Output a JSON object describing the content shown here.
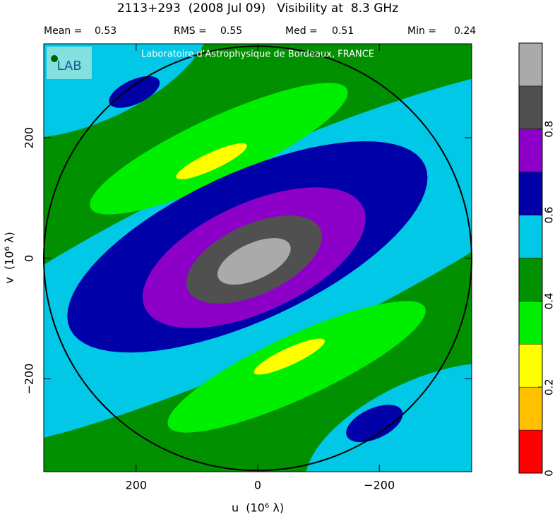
{
  "chart_data": {
    "type": "visibility-map",
    "title": "2113+293  (2008 Jul 09)   Visibility at  8.3 GHz",
    "stats": [
      {
        "label": "Mean =",
        "value": 0.53
      },
      {
        "label": "RMS =",
        "value": 0.55
      },
      {
        "label": "Med =",
        "value": 0.51
      },
      {
        "label": "Min =",
        "value": 0.24
      }
    ],
    "watermark": "Laboratoire d'Astrophysique de Bordeaux, FRANCE",
    "logo": "LAB",
    "x_label": "u  (10⁶ λ)",
    "y_label": "v  (10⁶ λ)",
    "xlim": [
      352,
      -352
    ],
    "ylim": [
      -354,
      356
    ],
    "xticks": [
      200,
      0,
      {
        "value": -200,
        "label": "−200"
      }
    ],
    "yticks": [
      {
        "value": -200,
        "label": "−200"
      },
      0,
      200
    ],
    "circle_radius": 352,
    "background_value": 0.4,
    "regions": [
      {
        "value": 0.5,
        "center": [
          273,
          323
        ],
        "radii": [
          210,
          95
        ],
        "angle": 155
      },
      {
        "value": 0.5,
        "center": [
          -273,
          -297
        ],
        "radii": [
          210,
          95
        ],
        "angle": 155
      },
      {
        "value": 0.5,
        "center": [
          0,
          0
        ],
        "radii": [
          700,
          157
        ],
        "angle": 155
      },
      {
        "value": 0.3,
        "center": [
          64,
          182
        ],
        "radii": [
          233,
          52
        ],
        "angle": 155
      },
      {
        "value": 0.3,
        "center": [
          -64,
          -180
        ],
        "radii": [
          233,
          52
        ],
        "angle": 155
      },
      {
        "value": 0.2,
        "center": [
          76,
          161
        ],
        "radii": [
          64,
          14
        ],
        "angle": 155
      },
      {
        "value": 0.2,
        "center": [
          -52,
          -163
        ],
        "radii": [
          64,
          14
        ],
        "angle": 155
      },
      {
        "value": 0.6,
        "center": [
          17,
          19
        ],
        "radii": [
          322,
          122
        ],
        "angle": 155
      },
      {
        "value": 0.7,
        "center": [
          6,
          1
        ],
        "radii": [
          198,
          90
        ],
        "angle": 155
      },
      {
        "value": 0.8,
        "center": [
          6,
          -2
        ],
        "radii": [
          120,
          58
        ],
        "angle": 155
      },
      {
        "value": 0.9,
        "center": [
          6,
          -5
        ],
        "radii": [
          65,
          30
        ],
        "angle": 155
      },
      {
        "value": 0.6,
        "center": [
          203,
          276
        ],
        "radii": [
          45,
          20
        ],
        "angle": 155
      },
      {
        "value": 0.6,
        "center": [
          -192,
          -274
        ],
        "radii": [
          50,
          25
        ],
        "angle": 155
      }
    ],
    "colorbar": {
      "bins": [
        0,
        0.1,
        0.2,
        0.3,
        0.4,
        0.5,
        0.6,
        0.7,
        0.8,
        0.9,
        1
      ],
      "colors": [
        "#ff0000",
        "#ffc000",
        "#ffff00",
        "#00ee00",
        "#009000",
        "#00c8e6",
        "#0000a8",
        "#8c00c8",
        "#505050",
        "#aaaaaa"
      ],
      "ticks": [
        0,
        0.2,
        0.4,
        0.6,
        0.8
      ]
    }
  }
}
